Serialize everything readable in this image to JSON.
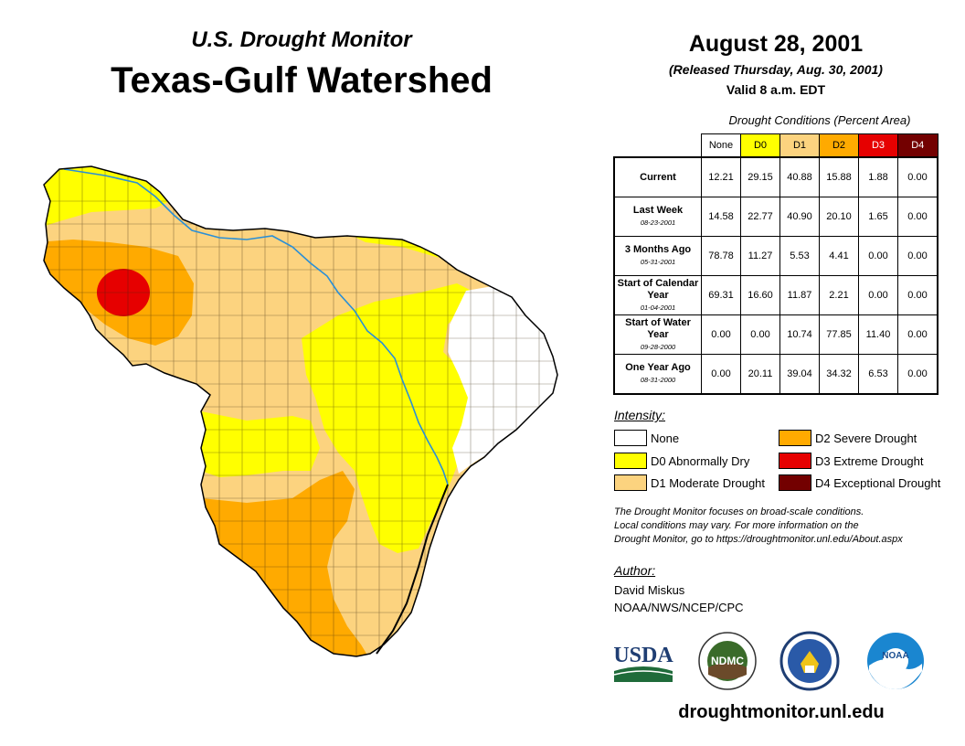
{
  "header": {
    "subtitle": "U.S. Drought Monitor",
    "title": "Texas-Gulf Watershed",
    "date": "August 28, 2001",
    "released": "(Released Thursday, Aug. 30, 2001)",
    "valid": "Valid 8 a.m. EDT"
  },
  "table": {
    "caption": "Drought Conditions (Percent Area)",
    "columns": [
      {
        "label": "None",
        "bg": "#ffffff",
        "fg": "#000000"
      },
      {
        "label": "D0",
        "bg": "#ffff00",
        "fg": "#000000"
      },
      {
        "label": "D1",
        "bg": "#fcd37f",
        "fg": "#000000"
      },
      {
        "label": "D2",
        "bg": "#ffaa00",
        "fg": "#000000"
      },
      {
        "label": "D3",
        "bg": "#e60000",
        "fg": "#ffffff"
      },
      {
        "label": "D4",
        "bg": "#730000",
        "fg": "#ffffff"
      }
    ],
    "rows": [
      {
        "label": "Current",
        "date": "",
        "values": [
          "12.21",
          "29.15",
          "40.88",
          "15.88",
          "1.88",
          "0.00"
        ]
      },
      {
        "label": "Last Week",
        "date": "08-23-2001",
        "values": [
          "14.58",
          "22.77",
          "40.90",
          "20.10",
          "1.65",
          "0.00"
        ]
      },
      {
        "label": "3 Months Ago",
        "date": "05-31-2001",
        "values": [
          "78.78",
          "11.27",
          "5.53",
          "4.41",
          "0.00",
          "0.00"
        ]
      },
      {
        "label": "Start of Calendar Year",
        "date": "01-04-2001",
        "values": [
          "69.31",
          "16.60",
          "11.87",
          "2.21",
          "0.00",
          "0.00"
        ]
      },
      {
        "label": "Start of Water Year",
        "date": "09-28-2000",
        "values": [
          "0.00",
          "0.00",
          "10.74",
          "77.85",
          "11.40",
          "0.00"
        ]
      },
      {
        "label": "One Year Ago",
        "date": "08-31-2000",
        "values": [
          "0.00",
          "20.11",
          "39.04",
          "34.32",
          "6.53",
          "0.00"
        ]
      }
    ]
  },
  "legend": {
    "title": "Intensity:",
    "items": [
      {
        "label": "None",
        "color": "#ffffff"
      },
      {
        "label": "D0 Abnormally Dry",
        "color": "#ffff00"
      },
      {
        "label": "D1 Moderate Drought",
        "color": "#fcd37f"
      },
      {
        "label": "D2 Severe Drought",
        "color": "#ffaa00"
      },
      {
        "label": "D3 Extreme Drought",
        "color": "#e60000"
      },
      {
        "label": "D4 Exceptional Drought",
        "color": "#730000"
      }
    ]
  },
  "note": {
    "line1": "The Drought Monitor focuses on broad-scale conditions.",
    "line2": "Local conditions may vary. For more information on the",
    "line3": "Drought Monitor, go to https://droughtmonitor.unl.edu/About.aspx"
  },
  "author": {
    "title": "Author:",
    "name": "David Miskus",
    "org": "NOAA/NWS/NCEP/CPC"
  },
  "logos": {
    "usda": "USDA",
    "ndmc": "NDMC",
    "noaa": "NOAA"
  },
  "website": "droughtmonitor.unl.edu"
}
